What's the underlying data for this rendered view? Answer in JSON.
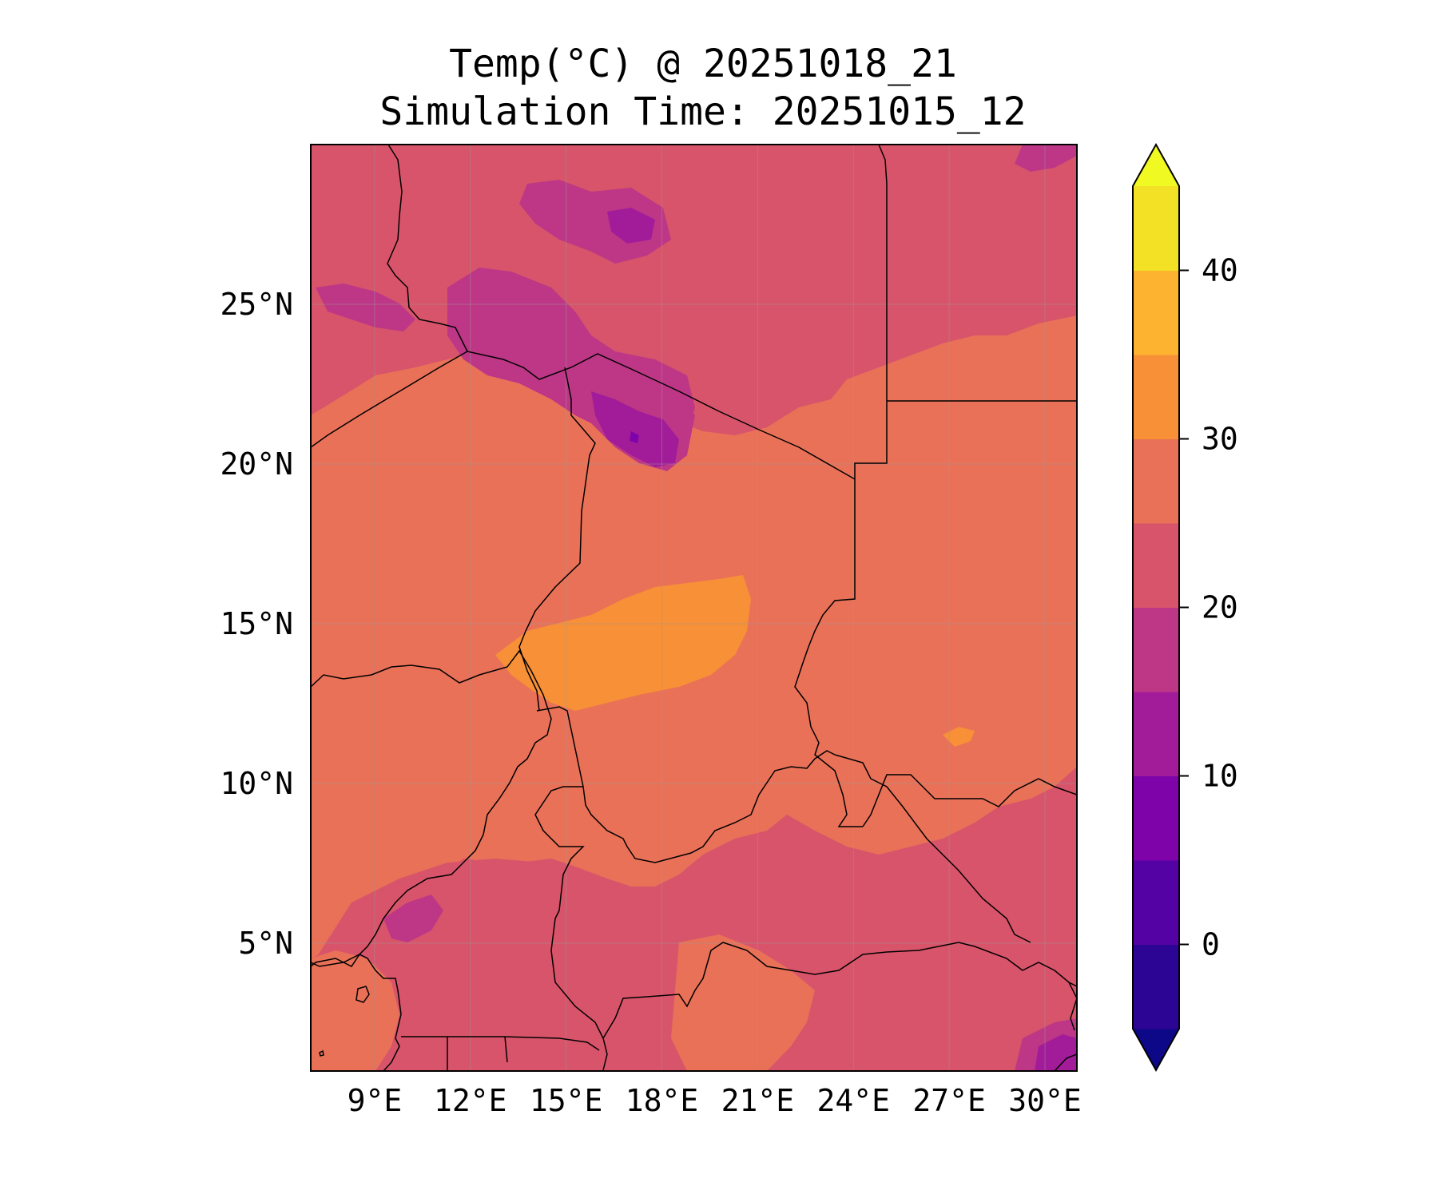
{
  "title": {
    "line1": "Temp(°C) @ 20251018_21",
    "line2": "Simulation Time: 20251015_12"
  },
  "map": {
    "lon_range": [
      7,
      31
    ],
    "lat_range": [
      1,
      30
    ],
    "lon_ticks": [
      {
        "value": 9,
        "label": "9°E"
      },
      {
        "value": 12,
        "label": "12°E"
      },
      {
        "value": 15,
        "label": "15°E"
      },
      {
        "value": 18,
        "label": "18°E"
      },
      {
        "value": 21,
        "label": "21°E"
      },
      {
        "value": 24,
        "label": "24°E"
      },
      {
        "value": 27,
        "label": "27°E"
      },
      {
        "value": 30,
        "label": "30°E"
      }
    ],
    "lat_ticks": [
      {
        "value": 5,
        "label": "5°N"
      },
      {
        "value": 10,
        "label": "10°N"
      },
      {
        "value": 15,
        "label": "15°N"
      },
      {
        "value": 20,
        "label": "20°N"
      },
      {
        "value": 25,
        "label": "25°N"
      }
    ],
    "grid": true,
    "background_fill": "#d8546a"
  },
  "colorbar": {
    "range": [
      -5,
      45
    ],
    "extend": "both",
    "under_color": "#0d0887",
    "over_color": "#f0f921",
    "levels": [
      {
        "from": -5,
        "to": 0,
        "color": "#2c0594"
      },
      {
        "from": 0,
        "to": 5,
        "color": "#5402a3"
      },
      {
        "from": 5,
        "to": 10,
        "color": "#7e03a8"
      },
      {
        "from": 10,
        "to": 15,
        "color": "#a21c9a"
      },
      {
        "from": 15,
        "to": 20,
        "color": "#bd3786"
      },
      {
        "from": 20,
        "to": 25,
        "color": "#d8546a"
      },
      {
        "from": 25,
        "to": 30,
        "color": "#e97158"
      },
      {
        "from": 30,
        "to": 35,
        "color": "#f79037"
      },
      {
        "from": 35,
        "to": 40,
        "color": "#fdb32f"
      },
      {
        "from": 40,
        "to": 45,
        "color": "#f2e124"
      }
    ],
    "ticks": [
      {
        "value": 0,
        "label": "0"
      },
      {
        "value": 10,
        "label": "10"
      },
      {
        "value": 20,
        "label": "20"
      },
      {
        "value": 30,
        "label": "30"
      },
      {
        "value": 40,
        "label": "40"
      }
    ]
  }
}
